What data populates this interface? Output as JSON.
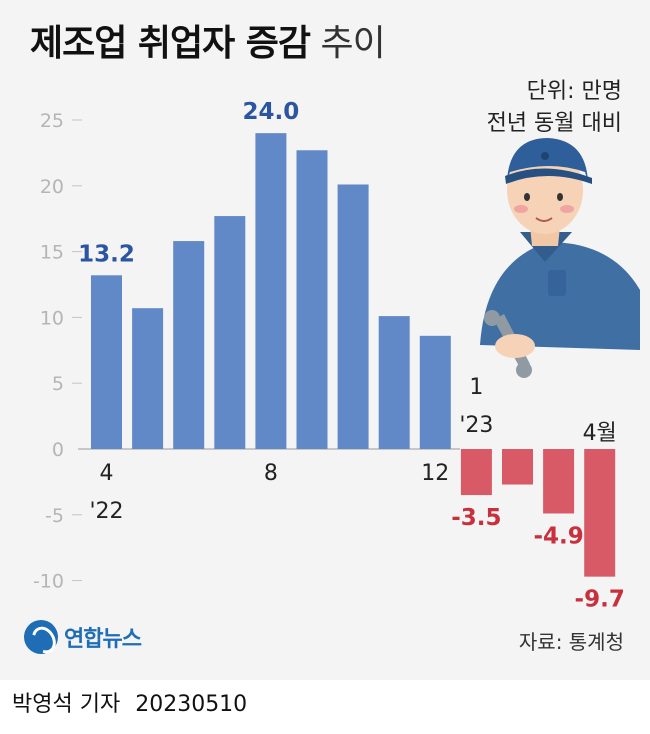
{
  "header": {
    "title_bold": "제조업 취업자 증감",
    "title_light": "추이",
    "unit_line1": "단위: 만명",
    "unit_line2": "전년 동월 대비"
  },
  "chart_data": {
    "type": "bar",
    "categories": [
      "'22.4",
      "'22.5",
      "'22.6",
      "'22.7",
      "'22.8",
      "'22.9",
      "'22.10",
      "'22.11",
      "'22.12",
      "'23.1",
      "'23.2",
      "'23.3",
      "'23.4"
    ],
    "values": [
      13.2,
      10.7,
      15.8,
      17.7,
      24.0,
      22.7,
      20.1,
      10.1,
      8.6,
      -3.5,
      -2.7,
      -4.9,
      -9.7
    ],
    "ylim": [
      -10,
      25
    ],
    "yticks": [
      -10,
      -5,
      0,
      5,
      10,
      15,
      20,
      25
    ],
    "ytick_labels": [
      "-10",
      "-5",
      "0",
      "5",
      "10",
      "15",
      "20",
      "25"
    ],
    "xtick_labels": [
      {
        "index": 0,
        "lines": [
          "4",
          "'22"
        ]
      },
      {
        "index": 4,
        "lines": [
          "8"
        ]
      },
      {
        "index": 8,
        "lines": [
          "12"
        ]
      },
      {
        "index": 9,
        "lines": [
          "1",
          "'23"
        ]
      },
      {
        "index": 12,
        "lines": [
          "4월"
        ]
      }
    ],
    "data_labels": [
      {
        "index": 0,
        "text": "13.2"
      },
      {
        "index": 4,
        "text": "24.0"
      },
      {
        "index": 9,
        "text": "-3.5"
      },
      {
        "index": 11,
        "text": "-4.9"
      },
      {
        "index": 12,
        "text": "-9.7"
      }
    ],
    "colors": {
      "positive": "#6189c8",
      "negative": "#d95a67",
      "positive_label": "#2b55a0",
      "negative_label": "#c8303d"
    }
  },
  "footer": {
    "agency": "연합뉴스",
    "source": "자료: 통계청",
    "reporter": "박영석 기자",
    "date": "20230510"
  }
}
